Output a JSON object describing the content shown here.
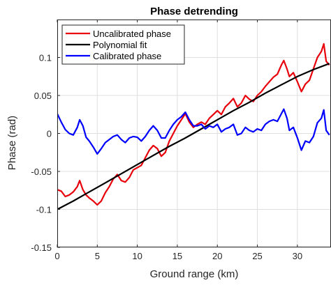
{
  "chart_data": {
    "type": "line",
    "title": "Phase detrending",
    "xlabel": "Ground range (km)",
    "ylabel": "Phase (rad)",
    "xlim": [
      0,
      34.2
    ],
    "ylim": [
      -0.15,
      0.15
    ],
    "x_ticks": [
      {
        "value": 0,
        "label": "0"
      },
      {
        "value": 5,
        "label": "5"
      },
      {
        "value": 10,
        "label": "10"
      },
      {
        "value": 15,
        "label": "15"
      },
      {
        "value": 20,
        "label": "20"
      },
      {
        "value": 25,
        "label": "25"
      },
      {
        "value": 30,
        "label": "30"
      }
    ],
    "y_ticks": [
      {
        "value": -0.15,
        "label": "-0.15"
      },
      {
        "value": -0.1,
        "label": "-0.1"
      },
      {
        "value": -0.05,
        "label": "-0.05"
      },
      {
        "value": 0,
        "label": "0"
      },
      {
        "value": 0.05,
        "label": "0.05"
      },
      {
        "value": 0.1,
        "label": "0.1"
      }
    ],
    "grid": true,
    "legend_position": "top-left",
    "series": [
      {
        "name": "Uncalibrated phase",
        "color": "#e8000b",
        "points": [
          [
            0.0,
            -0.074
          ],
          [
            0.5,
            -0.076
          ],
          [
            1.0,
            -0.083
          ],
          [
            1.5,
            -0.081
          ],
          [
            2.0,
            -0.077
          ],
          [
            2.5,
            -0.07
          ],
          [
            2.8,
            -0.062
          ],
          [
            3.2,
            -0.074
          ],
          [
            3.6,
            -0.081
          ],
          [
            4.0,
            -0.085
          ],
          [
            4.5,
            -0.089
          ],
          [
            5.0,
            -0.094
          ],
          [
            5.5,
            -0.089
          ],
          [
            6.0,
            -0.078
          ],
          [
            6.5,
            -0.07
          ],
          [
            7.0,
            -0.06
          ],
          [
            7.5,
            -0.054
          ],
          [
            8.0,
            -0.062
          ],
          [
            8.5,
            -0.064
          ],
          [
            9.0,
            -0.058
          ],
          [
            9.5,
            -0.048
          ],
          [
            10.0,
            -0.045
          ],
          [
            10.5,
            -0.042
          ],
          [
            11.0,
            -0.032
          ],
          [
            11.5,
            -0.022
          ],
          [
            12.0,
            -0.016
          ],
          [
            12.5,
            -0.02
          ],
          [
            13.0,
            -0.03
          ],
          [
            13.5,
            -0.025
          ],
          [
            14.0,
            -0.01
          ],
          [
            14.5,
            0.0
          ],
          [
            15.0,
            0.01
          ],
          [
            15.5,
            0.018
          ],
          [
            16.0,
            0.026
          ],
          [
            16.5,
            0.015
          ],
          [
            17.0,
            0.008
          ],
          [
            17.5,
            0.012
          ],
          [
            18.0,
            0.015
          ],
          [
            18.5,
            0.012
          ],
          [
            19.0,
            0.02
          ],
          [
            19.5,
            0.025
          ],
          [
            20.0,
            0.03
          ],
          [
            20.5,
            0.025
          ],
          [
            21.0,
            0.035
          ],
          [
            21.5,
            0.04
          ],
          [
            22.0,
            0.046
          ],
          [
            22.5,
            0.035
          ],
          [
            23.0,
            0.04
          ],
          [
            23.5,
            0.05
          ],
          [
            24.0,
            0.045
          ],
          [
            24.5,
            0.042
          ],
          [
            25.0,
            0.05
          ],
          [
            25.5,
            0.055
          ],
          [
            26.0,
            0.062
          ],
          [
            26.5,
            0.068
          ],
          [
            27.0,
            0.074
          ],
          [
            27.5,
            0.078
          ],
          [
            28.0,
            0.09
          ],
          [
            28.3,
            0.096
          ],
          [
            28.7,
            0.085
          ],
          [
            29.0,
            0.075
          ],
          [
            29.5,
            0.08
          ],
          [
            30.0,
            0.068
          ],
          [
            30.5,
            0.055
          ],
          [
            31.0,
            0.065
          ],
          [
            31.5,
            0.07
          ],
          [
            32.0,
            0.085
          ],
          [
            32.5,
            0.1
          ],
          [
            33.0,
            0.108
          ],
          [
            33.3,
            0.118
          ],
          [
            33.6,
            0.095
          ],
          [
            34.0,
            0.09
          ]
        ]
      },
      {
        "name": "Polynomial fit",
        "color": "#000000",
        "points": [
          [
            0,
            -0.1
          ],
          [
            2,
            -0.089
          ],
          [
            4,
            -0.077
          ],
          [
            6,
            -0.065
          ],
          [
            8,
            -0.053
          ],
          [
            10,
            -0.041
          ],
          [
            12,
            -0.029
          ],
          [
            14,
            -0.017
          ],
          [
            16,
            -0.006
          ],
          [
            18,
            0.006
          ],
          [
            20,
            0.018
          ],
          [
            22,
            0.03
          ],
          [
            24,
            0.041
          ],
          [
            26,
            0.053
          ],
          [
            28,
            0.064
          ],
          [
            30,
            0.075
          ],
          [
            32,
            0.084
          ],
          [
            34,
            0.092
          ]
        ]
      },
      {
        "name": "Calibrated phase",
        "color": "#0000ff",
        "points": [
          [
            0.0,
            0.026
          ],
          [
            0.5,
            0.015
          ],
          [
            1.0,
            0.005
          ],
          [
            1.5,
            0.0
          ],
          [
            2.0,
            -0.002
          ],
          [
            2.5,
            0.008
          ],
          [
            2.8,
            0.018
          ],
          [
            3.2,
            0.01
          ],
          [
            3.6,
            -0.005
          ],
          [
            4.0,
            -0.01
          ],
          [
            4.5,
            -0.018
          ],
          [
            5.0,
            -0.027
          ],
          [
            5.5,
            -0.02
          ],
          [
            6.0,
            -0.012
          ],
          [
            6.5,
            -0.008
          ],
          [
            7.0,
            -0.004
          ],
          [
            7.5,
            -0.002
          ],
          [
            8.0,
            -0.008
          ],
          [
            8.5,
            -0.012
          ],
          [
            9.0,
            -0.006
          ],
          [
            9.5,
            -0.004
          ],
          [
            10.0,
            -0.005
          ],
          [
            10.5,
            -0.01
          ],
          [
            11.0,
            -0.004
          ],
          [
            11.5,
            0.004
          ],
          [
            12.0,
            0.01
          ],
          [
            12.5,
            0.004
          ],
          [
            13.0,
            -0.006
          ],
          [
            13.5,
            -0.006
          ],
          [
            14.0,
            0.004
          ],
          [
            14.5,
            0.012
          ],
          [
            15.0,
            0.018
          ],
          [
            15.5,
            0.022
          ],
          [
            16.0,
            0.028
          ],
          [
            16.5,
            0.018
          ],
          [
            17.0,
            0.01
          ],
          [
            17.5,
            0.01
          ],
          [
            18.0,
            0.012
          ],
          [
            18.5,
            0.006
          ],
          [
            19.0,
            0.01
          ],
          [
            19.5,
            0.008
          ],
          [
            20.0,
            0.012
          ],
          [
            20.5,
            0.002
          ],
          [
            21.0,
            0.006
          ],
          [
            21.5,
            0.008
          ],
          [
            22.0,
            0.012
          ],
          [
            22.5,
            -0.002
          ],
          [
            23.0,
            0.0
          ],
          [
            23.5,
            0.008
          ],
          [
            24.0,
            0.004
          ],
          [
            24.5,
            0.002
          ],
          [
            25.0,
            0.006
          ],
          [
            25.5,
            0.004
          ],
          [
            26.0,
            0.012
          ],
          [
            26.5,
            0.016
          ],
          [
            27.0,
            0.018
          ],
          [
            27.5,
            0.016
          ],
          [
            28.0,
            0.026
          ],
          [
            28.3,
            0.032
          ],
          [
            28.7,
            0.02
          ],
          [
            29.0,
            0.004
          ],
          [
            29.5,
            0.008
          ],
          [
            30.0,
            -0.006
          ],
          [
            30.5,
            -0.022
          ],
          [
            31.0,
            -0.01
          ],
          [
            31.5,
            -0.012
          ],
          [
            32.0,
            -0.004
          ],
          [
            32.5,
            0.014
          ],
          [
            33.0,
            0.02
          ],
          [
            33.3,
            0.031
          ],
          [
            33.6,
            0.004
          ],
          [
            34.0,
            -0.002
          ]
        ]
      }
    ]
  }
}
